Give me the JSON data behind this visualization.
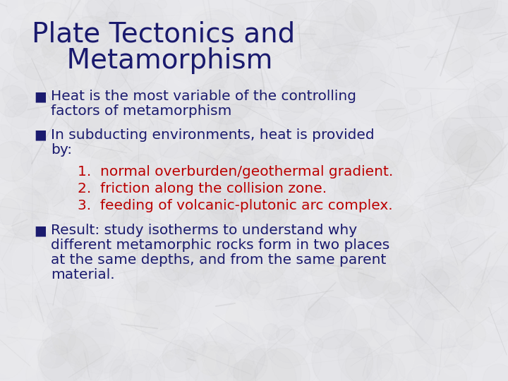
{
  "title_line1": "Plate Tectonics and",
  "title_line2": "    Metamorphism",
  "title_color": "#1a1a6e",
  "title_fontsize": 28,
  "body_color": "#1a1a6e",
  "body_fontsize": 14.5,
  "red_color": "#bb0000",
  "bg_base": "#e8e8ec",
  "bullet_char": "■",
  "bullet1_line1": "Heat is the most variable of the controlling",
  "bullet1_line2": "factors of metamorphism",
  "bullet2_line1": "In subducting environments, heat is provided",
  "bullet2_line2": "by:",
  "numbered1": "1.  normal overburden/geothermal gradient.",
  "numbered2": "2.  friction along the collision zone.",
  "numbered3": "3.  feeding of volcanic-plutonic arc complex.",
  "bullet3_line1": "Result: study isotherms to understand why",
  "bullet3_line2": "different metamorphic rocks form in two places",
  "bullet3_line3": "at the same depths, and from the same parent",
  "bullet3_line4": "material."
}
